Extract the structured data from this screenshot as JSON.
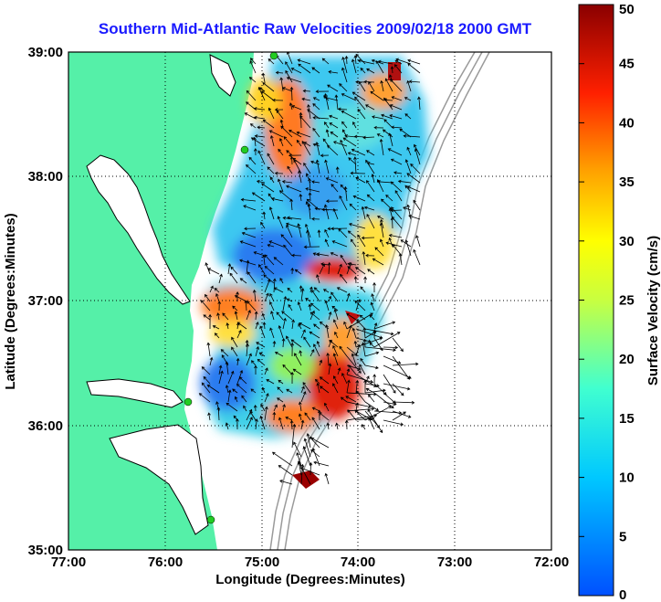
{
  "title": "Southern Mid-Atlantic Raw Velocities 2009/02/18 2000 GMT",
  "xaxis": {
    "label": "Longitude (Degrees:Minutes)",
    "ticks": [
      "77:00",
      "76:00",
      "75:00",
      "74:00",
      "73:00",
      "72:00"
    ]
  },
  "yaxis": {
    "label": "Latitude (Degrees:Minutes)",
    "ticks": [
      "39:00",
      "38:00",
      "37:00",
      "36:00",
      "35:00"
    ]
  },
  "colorbar": {
    "label": "Surface Velocity (cm/s)",
    "ticks": [
      "50",
      "45",
      "40",
      "35",
      "30",
      "25",
      "20",
      "15",
      "10",
      "5",
      "0"
    ]
  },
  "map": {
    "extent": {
      "lon_min": -77,
      "lon_max": -72,
      "lat_min": 35,
      "lat_max": 39
    },
    "colors": {
      "land": "#55f0a8",
      "ocean": "#ffffff",
      "bathymetry": "#9a9a9a",
      "station": "#22cc22",
      "arrow": "#000000"
    }
  }
}
